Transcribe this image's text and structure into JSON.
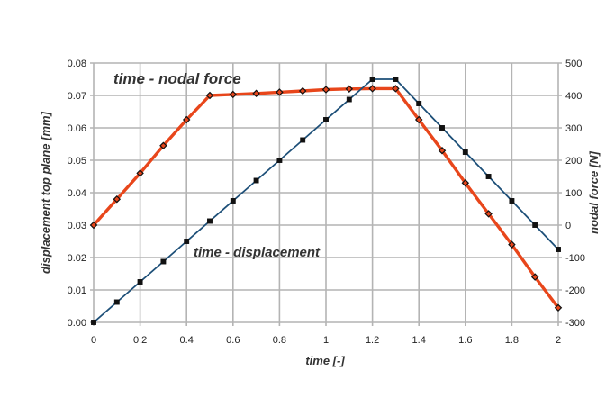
{
  "chart_data": {
    "type": "line",
    "title": "",
    "xlabel": "time [-]",
    "ylabel_left": "displacement top plane [mm]",
    "ylabel_right": "nodal force [N]",
    "xlim": [
      0,
      2
    ],
    "ylim_left": [
      0,
      0.08
    ],
    "ylim_right": [
      -300,
      500
    ],
    "grid": true,
    "x_ticks": [
      "0",
      "0.2",
      "0.4",
      "0.6",
      "0.8",
      "1",
      "1.2",
      "1.4",
      "1.6",
      "1.8",
      "2"
    ],
    "y_left_ticks": [
      "0.00",
      "0.01",
      "0.02",
      "0.03",
      "0.04",
      "0.05",
      "0.06",
      "0.07",
      "0.08"
    ],
    "y_right_ticks": [
      "-300",
      "-200",
      "-100",
      "0",
      "100",
      "200",
      "300",
      "400",
      "500"
    ],
    "x": [
      0,
      0.1,
      0.2,
      0.3,
      0.4,
      0.5,
      0.6,
      0.7,
      0.8,
      0.9,
      1.0,
      1.1,
      1.2,
      1.3,
      1.4,
      1.5,
      1.6,
      1.7,
      1.8,
      1.9,
      2.0
    ],
    "series": [
      {
        "name": "time - nodal force",
        "axis": "right",
        "color": "#e8461b",
        "marker": "diamond",
        "values": [
          0,
          80,
          160,
          245,
          325,
          400,
          403,
          406,
          410,
          414,
          418,
          420,
          421,
          421,
          325,
          230,
          130,
          35,
          -60,
          -160,
          -255
        ]
      },
      {
        "name": "time - displacement",
        "axis": "left",
        "color": "#1d4f78",
        "marker": "square",
        "values": [
          0,
          0.00625,
          0.0125,
          0.01875,
          0.025,
          0.03125,
          0.0375,
          0.04375,
          0.05,
          0.05625,
          0.0625,
          0.06875,
          0.075,
          0.075,
          0.0675,
          0.06,
          0.0525,
          0.045,
          0.0375,
          0.03,
          0.0225
        ]
      }
    ],
    "annotations": [
      {
        "text": "time - nodal force",
        "series": "time - nodal force"
      },
      {
        "text": "time - displacement",
        "series": "time - displacement"
      }
    ]
  }
}
